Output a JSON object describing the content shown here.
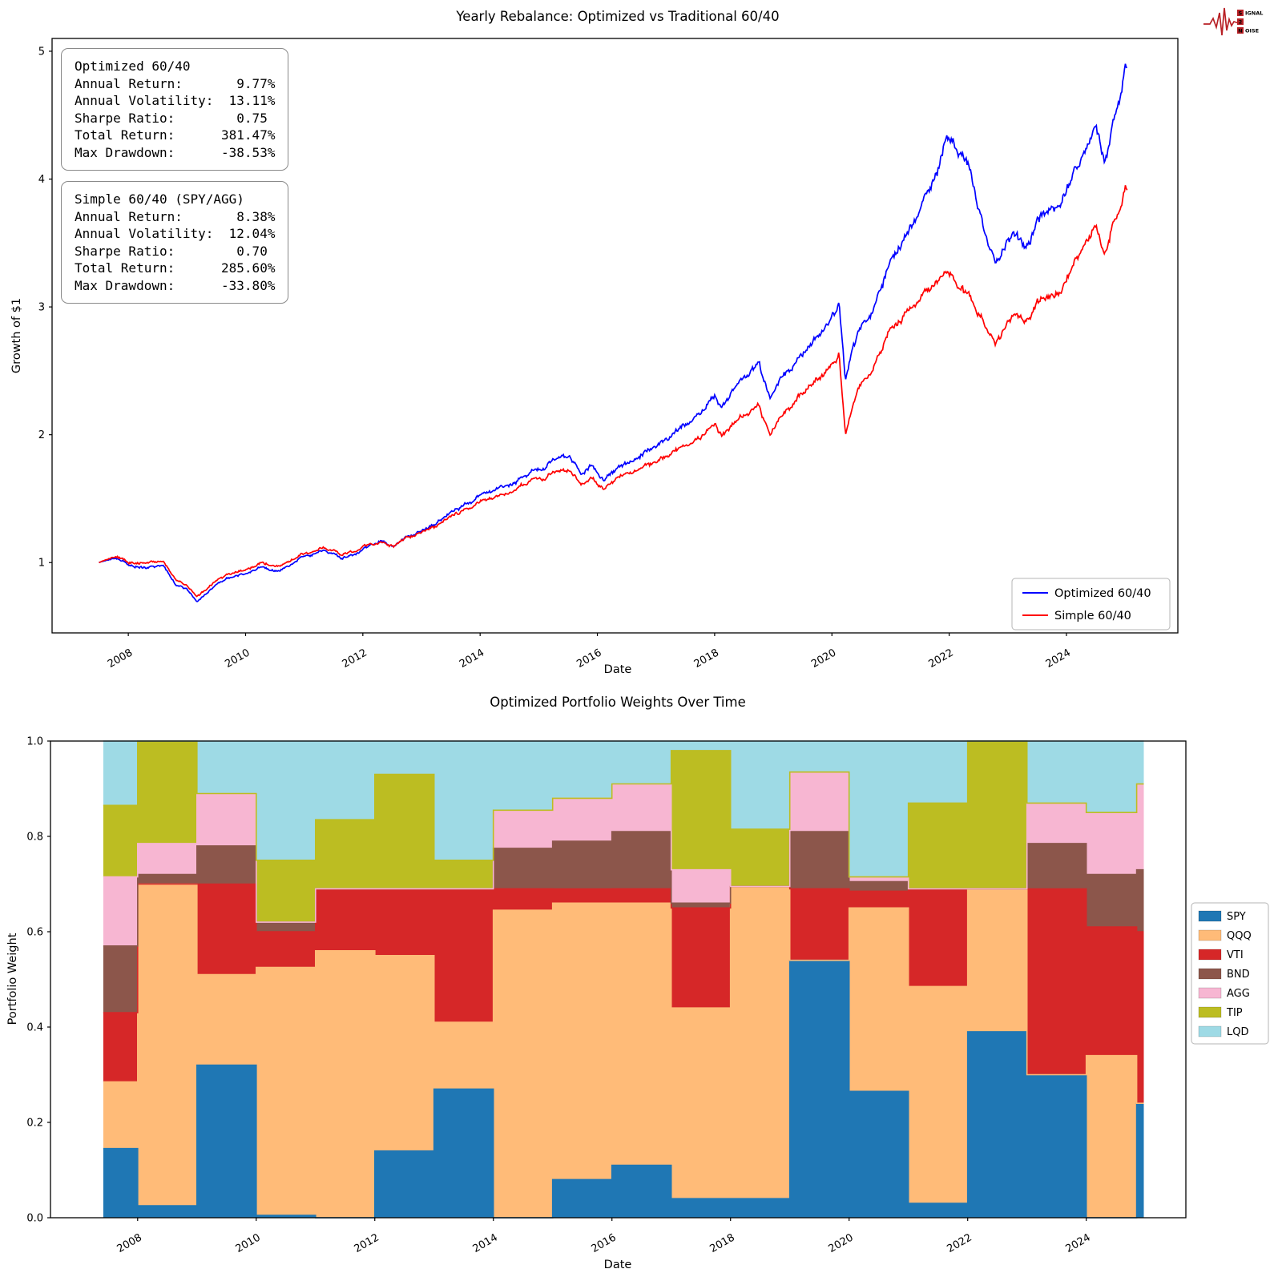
{
  "logo": {
    "rows": [
      {
        "boxed": "S",
        "rest": "IGNAL"
      },
      {
        "boxed": "2",
        "rest": ""
      },
      {
        "boxed": "N",
        "rest": "OISE"
      }
    ],
    "accent_color": "#b82025"
  },
  "chart_data": [
    {
      "type": "line",
      "title": "Yearly Rebalance: Optimized vs Traditional 60/40",
      "xlabel": "Date",
      "ylabel": "Growth of $1",
      "xlim": [
        2006.7,
        2025.9
      ],
      "ylim": [
        0.45,
        5.1
      ],
      "xticks": [
        2008,
        2010,
        2012,
        2014,
        2016,
        2018,
        2020,
        2022,
        2024
      ],
      "yticks": [
        1,
        2,
        3,
        4,
        5
      ],
      "grid": false,
      "legend_position": "lower right",
      "legend": [
        {
          "label": "Optimized 60/40",
          "color": "#0000ff"
        },
        {
          "label": "Simple 60/40",
          "color": "#ff0000"
        }
      ],
      "stat_boxes": [
        {
          "name": "optimized",
          "lines": [
            "Optimized 60/40",
            "Annual Return:       9.77%",
            "Annual Volatility:  13.11%",
            "Sharpe Ratio:        0.75",
            "Total Return:      381.47%",
            "Max Drawdown:      -38.53%"
          ]
        },
        {
          "name": "simple",
          "lines": [
            "Simple 60/40 (SPY/AGG)",
            "Annual Return:       8.38%",
            "Annual Volatility:  12.04%",
            "Sharpe Ratio:        0.70",
            "Total Return:      285.60%",
            "Max Drawdown:      -33.80%"
          ]
        }
      ],
      "series": [
        {
          "name": "Optimized 60/40",
          "color": "#0000ff",
          "anchors": [
            [
              2007.5,
              1.0
            ],
            [
              2007.75,
              1.04
            ],
            [
              2008.0,
              0.99
            ],
            [
              2008.3,
              0.96
            ],
            [
              2008.6,
              0.97
            ],
            [
              2008.8,
              0.82
            ],
            [
              2009.0,
              0.8
            ],
            [
              2009.17,
              0.7
            ],
            [
              2009.5,
              0.83
            ],
            [
              2009.8,
              0.9
            ],
            [
              2010.0,
              0.92
            ],
            [
              2010.3,
              0.97
            ],
            [
              2010.55,
              0.92
            ],
            [
              2011.0,
              1.05
            ],
            [
              2011.35,
              1.1
            ],
            [
              2011.65,
              1.03
            ],
            [
              2012.0,
              1.1
            ],
            [
              2012.3,
              1.17
            ],
            [
              2012.5,
              1.13
            ],
            [
              2013.0,
              1.25
            ],
            [
              2013.5,
              1.38
            ],
            [
              2014.0,
              1.52
            ],
            [
              2014.5,
              1.62
            ],
            [
              2015.0,
              1.73
            ],
            [
              2015.3,
              1.8
            ],
            [
              2015.55,
              1.82
            ],
            [
              2015.7,
              1.7
            ],
            [
              2015.9,
              1.78
            ],
            [
              2016.1,
              1.65
            ],
            [
              2016.5,
              1.78
            ],
            [
              2017.0,
              1.92
            ],
            [
              2017.5,
              2.08
            ],
            [
              2018.0,
              2.3
            ],
            [
              2018.12,
              2.22
            ],
            [
              2018.4,
              2.38
            ],
            [
              2018.75,
              2.55
            ],
            [
              2018.95,
              2.25
            ],
            [
              2019.1,
              2.42
            ],
            [
              2019.5,
              2.62
            ],
            [
              2019.9,
              2.85
            ],
            [
              2020.12,
              3.02
            ],
            [
              2020.23,
              2.45
            ],
            [
              2020.45,
              2.8
            ],
            [
              2020.7,
              2.95
            ],
            [
              2021.0,
              3.35
            ],
            [
              2021.4,
              3.65
            ],
            [
              2021.8,
              4.05
            ],
            [
              2021.95,
              4.35
            ],
            [
              2022.15,
              4.2
            ],
            [
              2022.35,
              4.05
            ],
            [
              2022.6,
              3.6
            ],
            [
              2022.8,
              3.35
            ],
            [
              2023.1,
              3.55
            ],
            [
              2023.35,
              3.45
            ],
            [
              2023.6,
              3.75
            ],
            [
              2023.8,
              3.72
            ],
            [
              2024.0,
              3.92
            ],
            [
              2024.3,
              4.2
            ],
            [
              2024.5,
              4.4
            ],
            [
              2024.65,
              4.15
            ],
            [
              2024.8,
              4.48
            ],
            [
              2024.95,
              4.72
            ],
            [
              2025.0,
              4.85
            ],
            [
              2025.05,
              4.81
            ]
          ]
        },
        {
          "name": "Simple 60/40",
          "color": "#ff0000",
          "anchors": [
            [
              2007.5,
              1.0
            ],
            [
              2007.75,
              1.05
            ],
            [
              2008.0,
              1.01
            ],
            [
              2008.3,
              1.0
            ],
            [
              2008.6,
              1.0
            ],
            [
              2008.8,
              0.86
            ],
            [
              2009.0,
              0.83
            ],
            [
              2009.17,
              0.74
            ],
            [
              2009.5,
              0.86
            ],
            [
              2009.8,
              0.93
            ],
            [
              2010.0,
              0.95
            ],
            [
              2010.3,
              1.0
            ],
            [
              2010.55,
              0.96
            ],
            [
              2011.0,
              1.07
            ],
            [
              2011.35,
              1.12
            ],
            [
              2011.65,
              1.06
            ],
            [
              2012.0,
              1.12
            ],
            [
              2012.3,
              1.16
            ],
            [
              2012.5,
              1.13
            ],
            [
              2013.0,
              1.24
            ],
            [
              2013.5,
              1.35
            ],
            [
              2014.0,
              1.47
            ],
            [
              2014.5,
              1.56
            ],
            [
              2015.0,
              1.66
            ],
            [
              2015.3,
              1.7
            ],
            [
              2015.55,
              1.71
            ],
            [
              2015.7,
              1.62
            ],
            [
              2015.9,
              1.68
            ],
            [
              2016.1,
              1.58
            ],
            [
              2016.5,
              1.7
            ],
            [
              2017.0,
              1.8
            ],
            [
              2017.5,
              1.92
            ],
            [
              2018.0,
              2.08
            ],
            [
              2018.12,
              2.0
            ],
            [
              2018.4,
              2.1
            ],
            [
              2018.75,
              2.22
            ],
            [
              2018.95,
              1.97
            ],
            [
              2019.1,
              2.12
            ],
            [
              2019.5,
              2.32
            ],
            [
              2019.9,
              2.5
            ],
            [
              2020.12,
              2.62
            ],
            [
              2020.23,
              2.02
            ],
            [
              2020.45,
              2.35
            ],
            [
              2020.7,
              2.5
            ],
            [
              2021.0,
              2.82
            ],
            [
              2021.4,
              3.0
            ],
            [
              2021.8,
              3.2
            ],
            [
              2021.95,
              3.3
            ],
            [
              2022.15,
              3.15
            ],
            [
              2022.35,
              3.05
            ],
            [
              2022.6,
              2.88
            ],
            [
              2022.8,
              2.72
            ],
            [
              2023.1,
              2.92
            ],
            [
              2023.35,
              2.88
            ],
            [
              2023.6,
              3.08
            ],
            [
              2023.8,
              3.05
            ],
            [
              2024.0,
              3.22
            ],
            [
              2024.3,
              3.48
            ],
            [
              2024.5,
              3.62
            ],
            [
              2024.65,
              3.42
            ],
            [
              2024.8,
              3.68
            ],
            [
              2024.95,
              3.82
            ],
            [
              2025.0,
              3.9
            ],
            [
              2025.05,
              3.86
            ]
          ]
        }
      ]
    },
    {
      "type": "area",
      "title": "Optimized Portfolio Weights Over Time",
      "xlabel": "Date",
      "ylabel": "Portfolio Weight",
      "xlim": [
        2006.53,
        2025.68
      ],
      "ylim": [
        0,
        1
      ],
      "xticks": [
        2008,
        2010,
        2012,
        2014,
        2016,
        2018,
        2020,
        2022,
        2024
      ],
      "ytick_labels": [
        "0.0",
        "0.2",
        "0.4",
        "0.6",
        "0.8",
        "1.0"
      ],
      "yticks": [
        0,
        0.2,
        0.4,
        0.6,
        0.8,
        1.0
      ],
      "legend_position": "outside right",
      "column_starts": [
        2007.42,
        2008,
        2009,
        2010,
        2011,
        2012,
        2013,
        2014,
        2015,
        2016,
        2017,
        2018,
        2019,
        2020,
        2021,
        2022,
        2023,
        2024,
        2024.85
      ],
      "column_end": 2024.97,
      "series": [
        {
          "name": "SPY",
          "color": "#1f77b4",
          "values": [
            0.145,
            0.025,
            0.32,
            0.005,
            0.0,
            0.14,
            0.27,
            0.0,
            0.08,
            0.11,
            0.04,
            0.04,
            0.54,
            0.265,
            0.03,
            0.39,
            0.3,
            0.0,
            0.24
          ]
        },
        {
          "name": "QQQ",
          "color": "#ffbb78",
          "values": [
            0.14,
            0.675,
            0.19,
            0.52,
            0.56,
            0.41,
            0.14,
            0.645,
            0.58,
            0.55,
            0.4,
            0.655,
            0.0,
            0.385,
            0.455,
            0.3,
            0.0,
            0.34,
            0.0
          ]
        },
        {
          "name": "VTI",
          "color": "#d62728",
          "values": [
            0.145,
            0.0,
            0.19,
            0.075,
            0.13,
            0.14,
            0.28,
            0.045,
            0.03,
            0.03,
            0.21,
            0.0,
            0.15,
            0.035,
            0.205,
            0.0,
            0.39,
            0.27,
            0.36
          ]
        },
        {
          "name": "BND",
          "color": "#8c564b",
          "values": [
            0.14,
            0.02,
            0.08,
            0.02,
            0.0,
            0.0,
            0.0,
            0.085,
            0.1,
            0.12,
            0.01,
            0.0,
            0.12,
            0.02,
            0.0,
            0.0,
            0.095,
            0.11,
            0.13
          ]
        },
        {
          "name": "AGG",
          "color": "#f7b6d2",
          "values": [
            0.145,
            0.065,
            0.11,
            0.0,
            0.0,
            0.0,
            0.0,
            0.08,
            0.09,
            0.1,
            0.07,
            0.0,
            0.125,
            0.01,
            0.0,
            0.0,
            0.085,
            0.13,
            0.18
          ]
        },
        {
          "name": "TIP",
          "color": "#bcbd22",
          "values": [
            0.15,
            0.215,
            0.0,
            0.13,
            0.145,
            0.24,
            0.06,
            0.0,
            0.0,
            0.0,
            0.25,
            0.12,
            0.0,
            0.0,
            0.18,
            0.31,
            0.0,
            0.0,
            0.0
          ]
        },
        {
          "name": "LQD",
          "color": "#9edae5",
          "values": [
            0.135,
            0.0,
            0.11,
            0.25,
            0.165,
            0.07,
            0.25,
            0.145,
            0.12,
            0.09,
            0.02,
            0.185,
            0.065,
            0.285,
            0.13,
            0.0,
            0.13,
            0.15,
            0.09
          ]
        }
      ]
    }
  ]
}
